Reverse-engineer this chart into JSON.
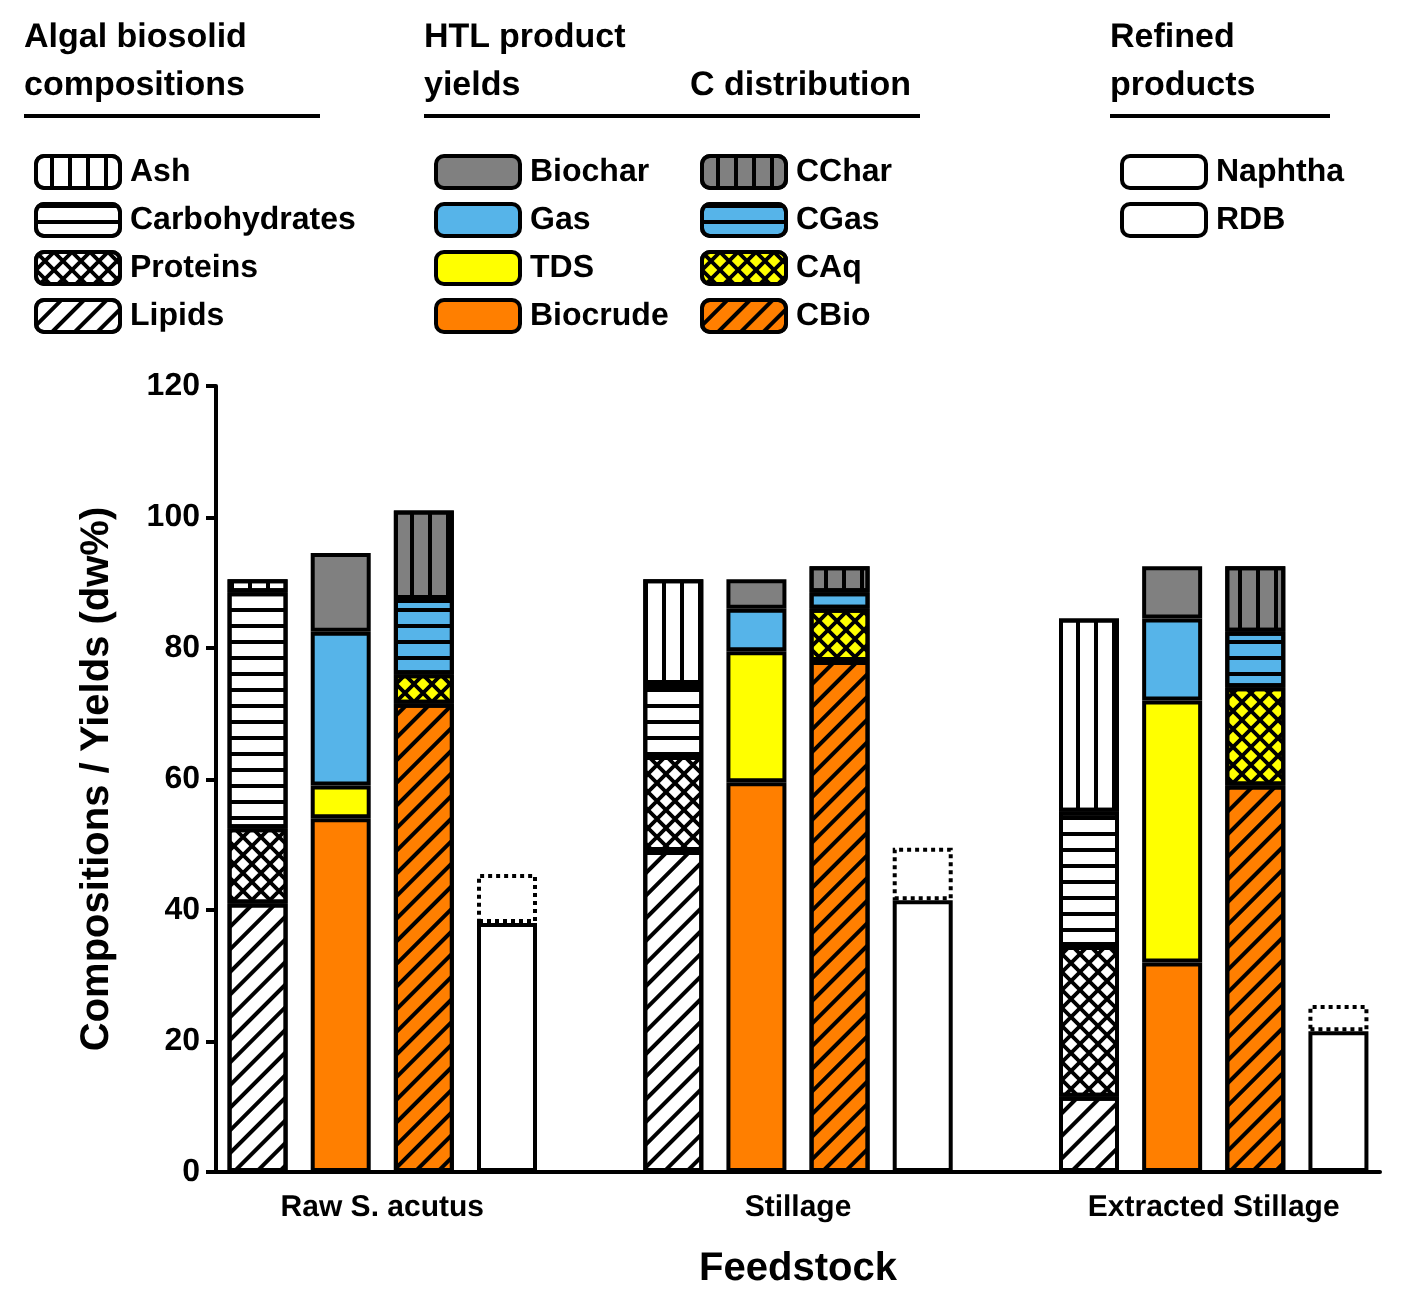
{
  "chart_data": {
    "type": "bar",
    "stacked": true,
    "xlabel": "Feedstock",
    "ylabel": "Compositions / Yields (dw%)",
    "categories": [
      null,
      null,
      null,
      null,
      null,
      null,
      null,
      null,
      null,
      null,
      null,
      null,
      null,
      null
    ],
    "ylim": [
      0,
      120
    ],
    "yticks": [
      0,
      20,
      40,
      60,
      80,
      100,
      120
    ],
    "legend": "top",
    "annotations": [
      "Algal biosolid compositions",
      "HTL product yields",
      "C distribution",
      "Refined products",
      "Raw S. acutus",
      "Stillage",
      "Extracted Stillage"
    ],
    "series": [
      {
        "name": "Lipids",
        "color": "#ffffff",
        "values": [
          41,
          null,
          null,
          null,
          null,
          49,
          null,
          null,
          null,
          null,
          11.5,
          null,
          null,
          null
        ]
      },
      {
        "name": "Proteins",
        "color": "#ffffff",
        "values": [
          11.5,
          null,
          null,
          null,
          null,
          14.5,
          null,
          null,
          null,
          null,
          23,
          null,
          null,
          null
        ]
      },
      {
        "name": "Carbohydrates",
        "color": "#ffffff",
        "values": [
          36,
          null,
          null,
          null,
          null,
          11,
          null,
          null,
          null,
          null,
          20.5,
          null,
          null,
          null
        ]
      },
      {
        "name": "Ash",
        "color": "#ffffff",
        "values": [
          2,
          null,
          null,
          null,
          null,
          16,
          null,
          null,
          null,
          null,
          29.5,
          null,
          null,
          null
        ]
      },
      {
        "name": "Biocrude",
        "color": "#ff7f00",
        "values": [
          null,
          54,
          null,
          null,
          null,
          null,
          59.5,
          null,
          null,
          null,
          null,
          32,
          null,
          null
        ]
      },
      {
        "name": "TDS",
        "color": "#ffff00",
        "values": [
          null,
          5,
          null,
          null,
          null,
          null,
          20,
          null,
          null,
          null,
          null,
          40,
          null,
          null
        ]
      },
      {
        "name": "Gas",
        "color": "#56b4e9",
        "values": [
          null,
          23.5,
          null,
          null,
          null,
          null,
          6.5,
          null,
          null,
          null,
          null,
          12.5,
          null,
          null
        ]
      },
      {
        "name": "Biochar",
        "color": "#808080",
        "values": [
          null,
          12,
          null,
          null,
          null,
          null,
          4.5,
          null,
          null,
          null,
          null,
          8,
          null,
          null
        ]
      },
      {
        "name": "CBio",
        "color": "#ff7f00",
        "values": [
          null,
          null,
          71.5,
          null,
          null,
          null,
          null,
          78,
          null,
          null,
          null,
          null,
          59,
          null
        ]
      },
      {
        "name": "CAq",
        "color": "#ffff00",
        "values": [
          null,
          null,
          4.5,
          null,
          null,
          null,
          null,
          8,
          null,
          null,
          null,
          null,
          15,
          null
        ]
      },
      {
        "name": "CGas",
        "color": "#56b4e9",
        "values": [
          null,
          null,
          11.5,
          null,
          null,
          null,
          null,
          2.5,
          null,
          null,
          null,
          null,
          8.5,
          null
        ]
      },
      {
        "name": "CChar",
        "color": "#808080",
        "values": [
          null,
          null,
          13.5,
          null,
          null,
          null,
          null,
          4,
          null,
          null,
          null,
          null,
          10,
          null
        ]
      },
      {
        "name": "RDB",
        "color": "#ffffff",
        "values": [
          null,
          null,
          null,
          38,
          null,
          null,
          null,
          null,
          41.5,
          null,
          null,
          null,
          null,
          21.5
        ]
      },
      {
        "name": "Naphtha",
        "color": "#ffffff",
        "line_style": "dotted",
        "values": [
          null,
          null,
          null,
          7.5,
          null,
          null,
          null,
          null,
          8,
          null,
          null,
          null,
          null,
          4
        ]
      }
    ]
  }
}
